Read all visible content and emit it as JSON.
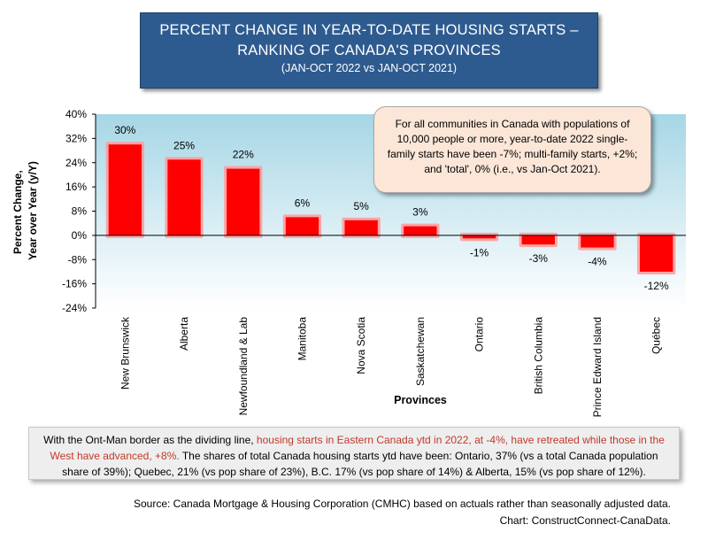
{
  "title": {
    "line1": "PERCENT CHANGE IN YEAR-TO-DATE HOUSING STARTS –",
    "line2": "RANKING OF CANADA'S PROVINCES",
    "line3": "(JAN-OCT 2022 vs JAN-OCT 2021)"
  },
  "callout": "For all communities in Canada with populations of 10,000 people or more, year-to-date 2022 single-family starts have been -7%; multi-family starts, +2%; and 'total', 0% (i.e., vs Jan-Oct 2021).",
  "note": {
    "part1": "With the Ont-Man border as the dividing line, ",
    "highlight": "housing starts in Eastern Canada ytd in 2022, at -4%, have retreated while those in the West have advanced, +8%.",
    "part2": " The shares of total Canada housing starts ytd have been: Ontario, 37% (vs a total Canada population share of 39%); Quebec, 21% (vs pop share of 23%), B.C. 17% (vs pop share of 14%) & Alberta, 15% (vs pop share of 12%)."
  },
  "source": {
    "line1": "Source: Canada Mortgage & Housing Corporation (CMHC) based on actuals rather than seasonally adjusted data.",
    "line2": "Chart: ConstructConnect-CanaData."
  },
  "colors": {
    "bar": "#ff0000",
    "bar_glow": "#ff9a9a",
    "plot_top": "#a6d6e6",
    "plot_bottom": "#ffffff",
    "title_bg": "#2e5b8f",
    "note_highlight": "#c0392b"
  },
  "chart_data": {
    "type": "bar",
    "categories": [
      "New Brunswick",
      "Alberta",
      "Newfoundland & Lab",
      "Manitoba",
      "Nova Scotia",
      "Saskatchewan",
      "Ontario",
      "British Columbia",
      "Prince Edward Island",
      "Québec"
    ],
    "values": [
      30,
      25,
      22,
      6,
      5,
      3,
      -1,
      -3,
      -4,
      -12
    ],
    "data_labels": [
      "30%",
      "25%",
      "22%",
      "6%",
      "5%",
      "3%",
      "-1%",
      "-3%",
      "-4%",
      "-12%"
    ],
    "xlabel": "Provinces",
    "ylabel_line1": "Percent Change,",
    "ylabel_line2": "Year over Year (y/Y)",
    "ylim": [
      -24,
      40
    ],
    "yticks": [
      40,
      32,
      24,
      16,
      8,
      0,
      -8,
      -16,
      -24
    ],
    "ytick_labels": [
      "40%",
      "32%",
      "24%",
      "16%",
      "8%",
      "0%",
      "-8%",
      "-16%",
      "-24%"
    ],
    "grid": false,
    "legend": "none"
  }
}
